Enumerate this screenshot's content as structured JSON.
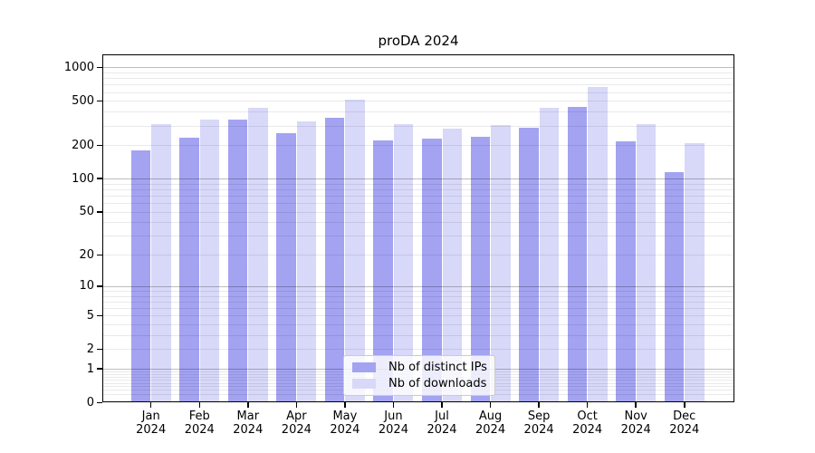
{
  "title": "proDA 2024",
  "chart_data": {
    "type": "bar",
    "title": "proDA 2024",
    "categories": [
      "Jan 2024",
      "Feb 2024",
      "Mar 2024",
      "Apr 2024",
      "May 2024",
      "Jun 2024",
      "Jul 2024",
      "Aug 2024",
      "Sep 2024",
      "Oct 2024",
      "Nov 2024",
      "Dec 2024"
    ],
    "series": [
      {
        "name": "Nb of distinct IPs",
        "color": "#a3a3f2",
        "values": [
          180,
          235,
          340,
          255,
          355,
          220,
          230,
          240,
          285,
          440,
          218,
          114
        ]
      },
      {
        "name": "Nb of downloads",
        "color": "#d8d8f9",
        "values": [
          310,
          340,
          430,
          330,
          515,
          310,
          280,
          305,
          430,
          670,
          312,
          208
        ]
      }
    ],
    "y_scale": "log10(1+x)",
    "y_ticks": [
      0,
      1,
      2,
      5,
      10,
      20,
      50,
      100,
      200,
      500,
      1000
    ],
    "ylim": [
      0,
      1300
    ],
    "grid": true,
    "legend_position": "lower center",
    "colors": {
      "major_grid": "rgba(0,0,0,0.26)",
      "minor_grid": "rgba(0,0,0,0.085)",
      "axis": "#000000",
      "legend_border": "#cccccc"
    }
  }
}
